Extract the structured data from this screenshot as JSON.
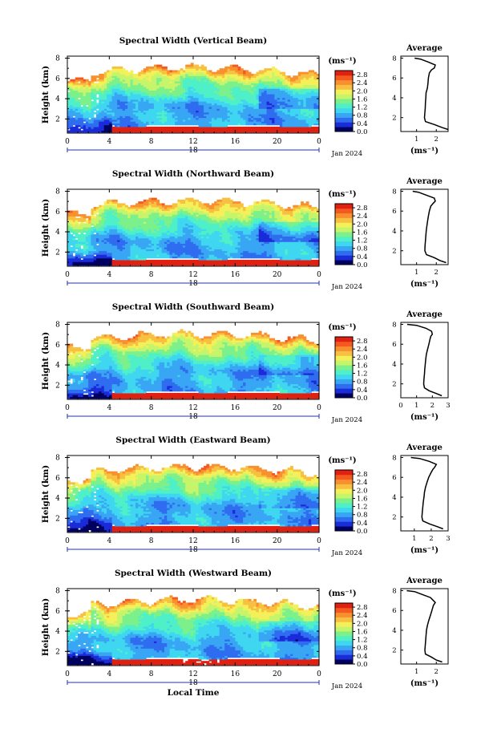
{
  "figure": {
    "x_axis_label": "Local Time",
    "date_label": "Jan 2024",
    "date_tick_label": "18",
    "colorbar_unit": "(ms⁻¹)",
    "profile_title": "Average",
    "profile_xlabel": "(ms⁻¹)"
  },
  "chart_data": [
    {
      "type": "heatmap",
      "title": "Spectral Width (Vertical Beam)",
      "ylabel": "Height (km)",
      "xlabel": "",
      "x_ticks": [
        "0",
        "4",
        "8",
        "12",
        "16",
        "20",
        "0"
      ],
      "x_range": [
        0,
        24
      ],
      "y_ticks": [
        "2",
        "4",
        "6",
        "8"
      ],
      "y_range": [
        0.6,
        8.2
      ],
      "colorbar": {
        "ticks": [
          "0.0",
          "0.4",
          "0.8",
          "1.2",
          "1.6",
          "2.0",
          "2.4",
          "2.8"
        ],
        "range": [
          0,
          3.0
        ],
        "colors": [
          "#000060",
          "#1a2bd8",
          "#2f6cf0",
          "#39a6f4",
          "#3fd6f0",
          "#4ff0c8",
          "#7cf08a",
          "#c6f46a",
          "#f4f05a",
          "#f8c040",
          "#f89030",
          "#f45a20",
          "#e02010"
        ]
      },
      "profile": {
        "title": "Average",
        "x_ticks": [
          "1",
          "2"
        ],
        "x_range": [
          0.2,
          2.6
        ],
        "y_ticks": [
          "2",
          "4",
          "6",
          "8"
        ],
        "heights": [
          0.8,
          1.0,
          1.3,
          1.6,
          2.0,
          2.5,
          3.0,
          3.5,
          4.0,
          4.5,
          5.0,
          5.5,
          6.0,
          6.5,
          6.8,
          7.0,
          7.3,
          7.6,
          7.9,
          8.0
        ],
        "values": [
          2.6,
          2.3,
          1.9,
          1.45,
          1.4,
          1.42,
          1.44,
          1.45,
          1.47,
          1.48,
          1.55,
          1.58,
          1.6,
          1.65,
          1.75,
          1.9,
          1.95,
          1.6,
          1.2,
          0.9
        ]
      }
    },
    {
      "type": "heatmap",
      "title": "Spectral Width (Northward Beam)",
      "ylabel": "Height (km)",
      "xlabel": "",
      "x_ticks": [
        "0",
        "4",
        "8",
        "12",
        "16",
        "20",
        "0"
      ],
      "x_range": [
        0,
        24
      ],
      "y_ticks": [
        "2",
        "4",
        "6",
        "8"
      ],
      "y_range": [
        0.6,
        8.2
      ],
      "colorbar": {
        "ticks": [
          "0.0",
          "0.4",
          "0.8",
          "1.2",
          "1.6",
          "2.0",
          "2.4",
          "2.8"
        ],
        "range": [
          0,
          3.0
        ],
        "colors": [
          "#000060",
          "#1a2bd8",
          "#2f6cf0",
          "#39a6f4",
          "#3fd6f0",
          "#4ff0c8",
          "#7cf08a",
          "#c6f46a",
          "#f4f05a",
          "#f8c040",
          "#f89030",
          "#f45a20",
          "#e02010"
        ]
      },
      "profile": {
        "title": "Average",
        "x_ticks": [
          "1",
          "2"
        ],
        "x_range": [
          0.2,
          2.6
        ],
        "y_ticks": [
          "2",
          "4",
          "6",
          "8"
        ],
        "heights": [
          0.8,
          1.0,
          1.3,
          1.6,
          2.0,
          2.5,
          3.0,
          3.5,
          4.0,
          4.5,
          5.0,
          5.5,
          6.0,
          6.5,
          6.8,
          7.0,
          7.3,
          7.6,
          7.9,
          8.0
        ],
        "values": [
          2.5,
          2.2,
          1.9,
          1.5,
          1.42,
          1.43,
          1.45,
          1.47,
          1.49,
          1.52,
          1.56,
          1.6,
          1.65,
          1.72,
          1.85,
          1.95,
          1.9,
          1.5,
          1.1,
          0.8
        ]
      }
    },
    {
      "type": "heatmap",
      "title": "Spectral Width (Southward Beam)",
      "ylabel": "Height (km)",
      "xlabel": "",
      "x_ticks": [
        "0",
        "4",
        "8",
        "12",
        "16",
        "20",
        "0"
      ],
      "x_range": [
        0,
        24
      ],
      "y_ticks": [
        "2",
        "4",
        "6",
        "8"
      ],
      "y_range": [
        0.6,
        8.2
      ],
      "colorbar": {
        "ticks": [
          "0.0",
          "0.4",
          "0.8",
          "1.2",
          "1.6",
          "2.0",
          "2.4",
          "2.8"
        ],
        "range": [
          0,
          3.0
        ],
        "colors": [
          "#000060",
          "#1a2bd8",
          "#2f6cf0",
          "#39a6f4",
          "#3fd6f0",
          "#4ff0c8",
          "#7cf08a",
          "#c6f46a",
          "#f4f05a",
          "#f8c040",
          "#f89030",
          "#f45a20",
          "#e02010"
        ]
      },
      "profile": {
        "title": "Average",
        "x_ticks": [
          "0",
          "1",
          "2",
          "3"
        ],
        "x_range": [
          0,
          3
        ],
        "y_ticks": [
          "2",
          "4",
          "6",
          "8"
        ],
        "heights": [
          0.8,
          1.0,
          1.3,
          1.6,
          2.0,
          2.5,
          3.0,
          3.5,
          4.0,
          4.5,
          5.0,
          5.5,
          6.0,
          6.5,
          6.8,
          7.0,
          7.3,
          7.6,
          7.9,
          8.0
        ],
        "values": [
          2.6,
          2.3,
          1.8,
          1.5,
          1.45,
          1.47,
          1.5,
          1.52,
          1.55,
          1.58,
          1.62,
          1.7,
          1.78,
          1.85,
          1.9,
          2.0,
          1.95,
          1.6,
          1.0,
          0.4
        ]
      }
    },
    {
      "type": "heatmap",
      "title": "Spectral Width (Eastward Beam)",
      "ylabel": "Height (km)",
      "xlabel": "",
      "x_ticks": [
        "0",
        "4",
        "8",
        "12",
        "16",
        "20",
        "0"
      ],
      "x_range": [
        0,
        24
      ],
      "y_ticks": [
        "2",
        "4",
        "6",
        "8"
      ],
      "y_range": [
        0.6,
        8.2
      ],
      "colorbar": {
        "ticks": [
          "0.0",
          "0.4",
          "0.8",
          "1.2",
          "1.6",
          "2.0",
          "2.4",
          "2.8"
        ],
        "range": [
          0,
          3.0
        ],
        "colors": [
          "#000060",
          "#1a2bd8",
          "#2f6cf0",
          "#39a6f4",
          "#3fd6f0",
          "#4ff0c8",
          "#7cf08a",
          "#c6f46a",
          "#f4f05a",
          "#f8c040",
          "#f89030",
          "#f45a20",
          "#e02010"
        ]
      },
      "profile": {
        "title": "Average",
        "x_ticks": [
          "1",
          "2",
          "3"
        ],
        "x_range": [
          0.2,
          3.0
        ],
        "y_ticks": [
          "2",
          "4",
          "6",
          "8"
        ],
        "heights": [
          0.8,
          1.0,
          1.3,
          1.6,
          2.0,
          2.5,
          3.0,
          3.5,
          4.0,
          4.5,
          5.0,
          5.5,
          6.0,
          6.5,
          6.8,
          7.0,
          7.3,
          7.6,
          7.9,
          8.0
        ],
        "values": [
          2.7,
          2.4,
          1.9,
          1.5,
          1.45,
          1.47,
          1.5,
          1.53,
          1.57,
          1.6,
          1.66,
          1.75,
          1.85,
          2.0,
          2.1,
          2.2,
          2.3,
          1.9,
          1.3,
          0.8
        ]
      }
    },
    {
      "type": "heatmap",
      "title": "Spectral Width (Westward Beam)",
      "ylabel": "Height (km)",
      "xlabel": "Local Time",
      "x_ticks": [
        "0",
        "4",
        "8",
        "12",
        "16",
        "20",
        "0"
      ],
      "x_range": [
        0,
        24
      ],
      "y_ticks": [
        "2",
        "4",
        "6",
        "8"
      ],
      "y_range": [
        0.6,
        8.2
      ],
      "colorbar": {
        "ticks": [
          "0.0",
          "0.4",
          "0.8",
          "1.2",
          "1.6",
          "2.0",
          "2.4",
          "2.8"
        ],
        "range": [
          0,
          3.0
        ],
        "colors": [
          "#000060",
          "#1a2bd8",
          "#2f6cf0",
          "#39a6f4",
          "#3fd6f0",
          "#4ff0c8",
          "#7cf08a",
          "#c6f46a",
          "#f4f05a",
          "#f8c040",
          "#f89030",
          "#f45a20",
          "#e02010"
        ]
      },
      "profile": {
        "title": "Average",
        "x_ticks": [
          "1",
          "2"
        ],
        "x_range": [
          0.2,
          2.6
        ],
        "y_ticks": [
          "2",
          "4",
          "6",
          "8"
        ],
        "heights": [
          0.8,
          1.0,
          1.3,
          1.6,
          2.0,
          2.5,
          3.0,
          3.5,
          4.0,
          4.5,
          5.0,
          5.5,
          6.0,
          6.5,
          6.8,
          7.0,
          7.3,
          7.6,
          7.9,
          8.0
        ],
        "values": [
          2.3,
          2.0,
          1.75,
          1.45,
          1.42,
          1.44,
          1.46,
          1.48,
          1.5,
          1.55,
          1.62,
          1.7,
          1.78,
          1.85,
          1.95,
          1.85,
          1.7,
          1.3,
          0.9,
          0.5
        ]
      }
    }
  ]
}
